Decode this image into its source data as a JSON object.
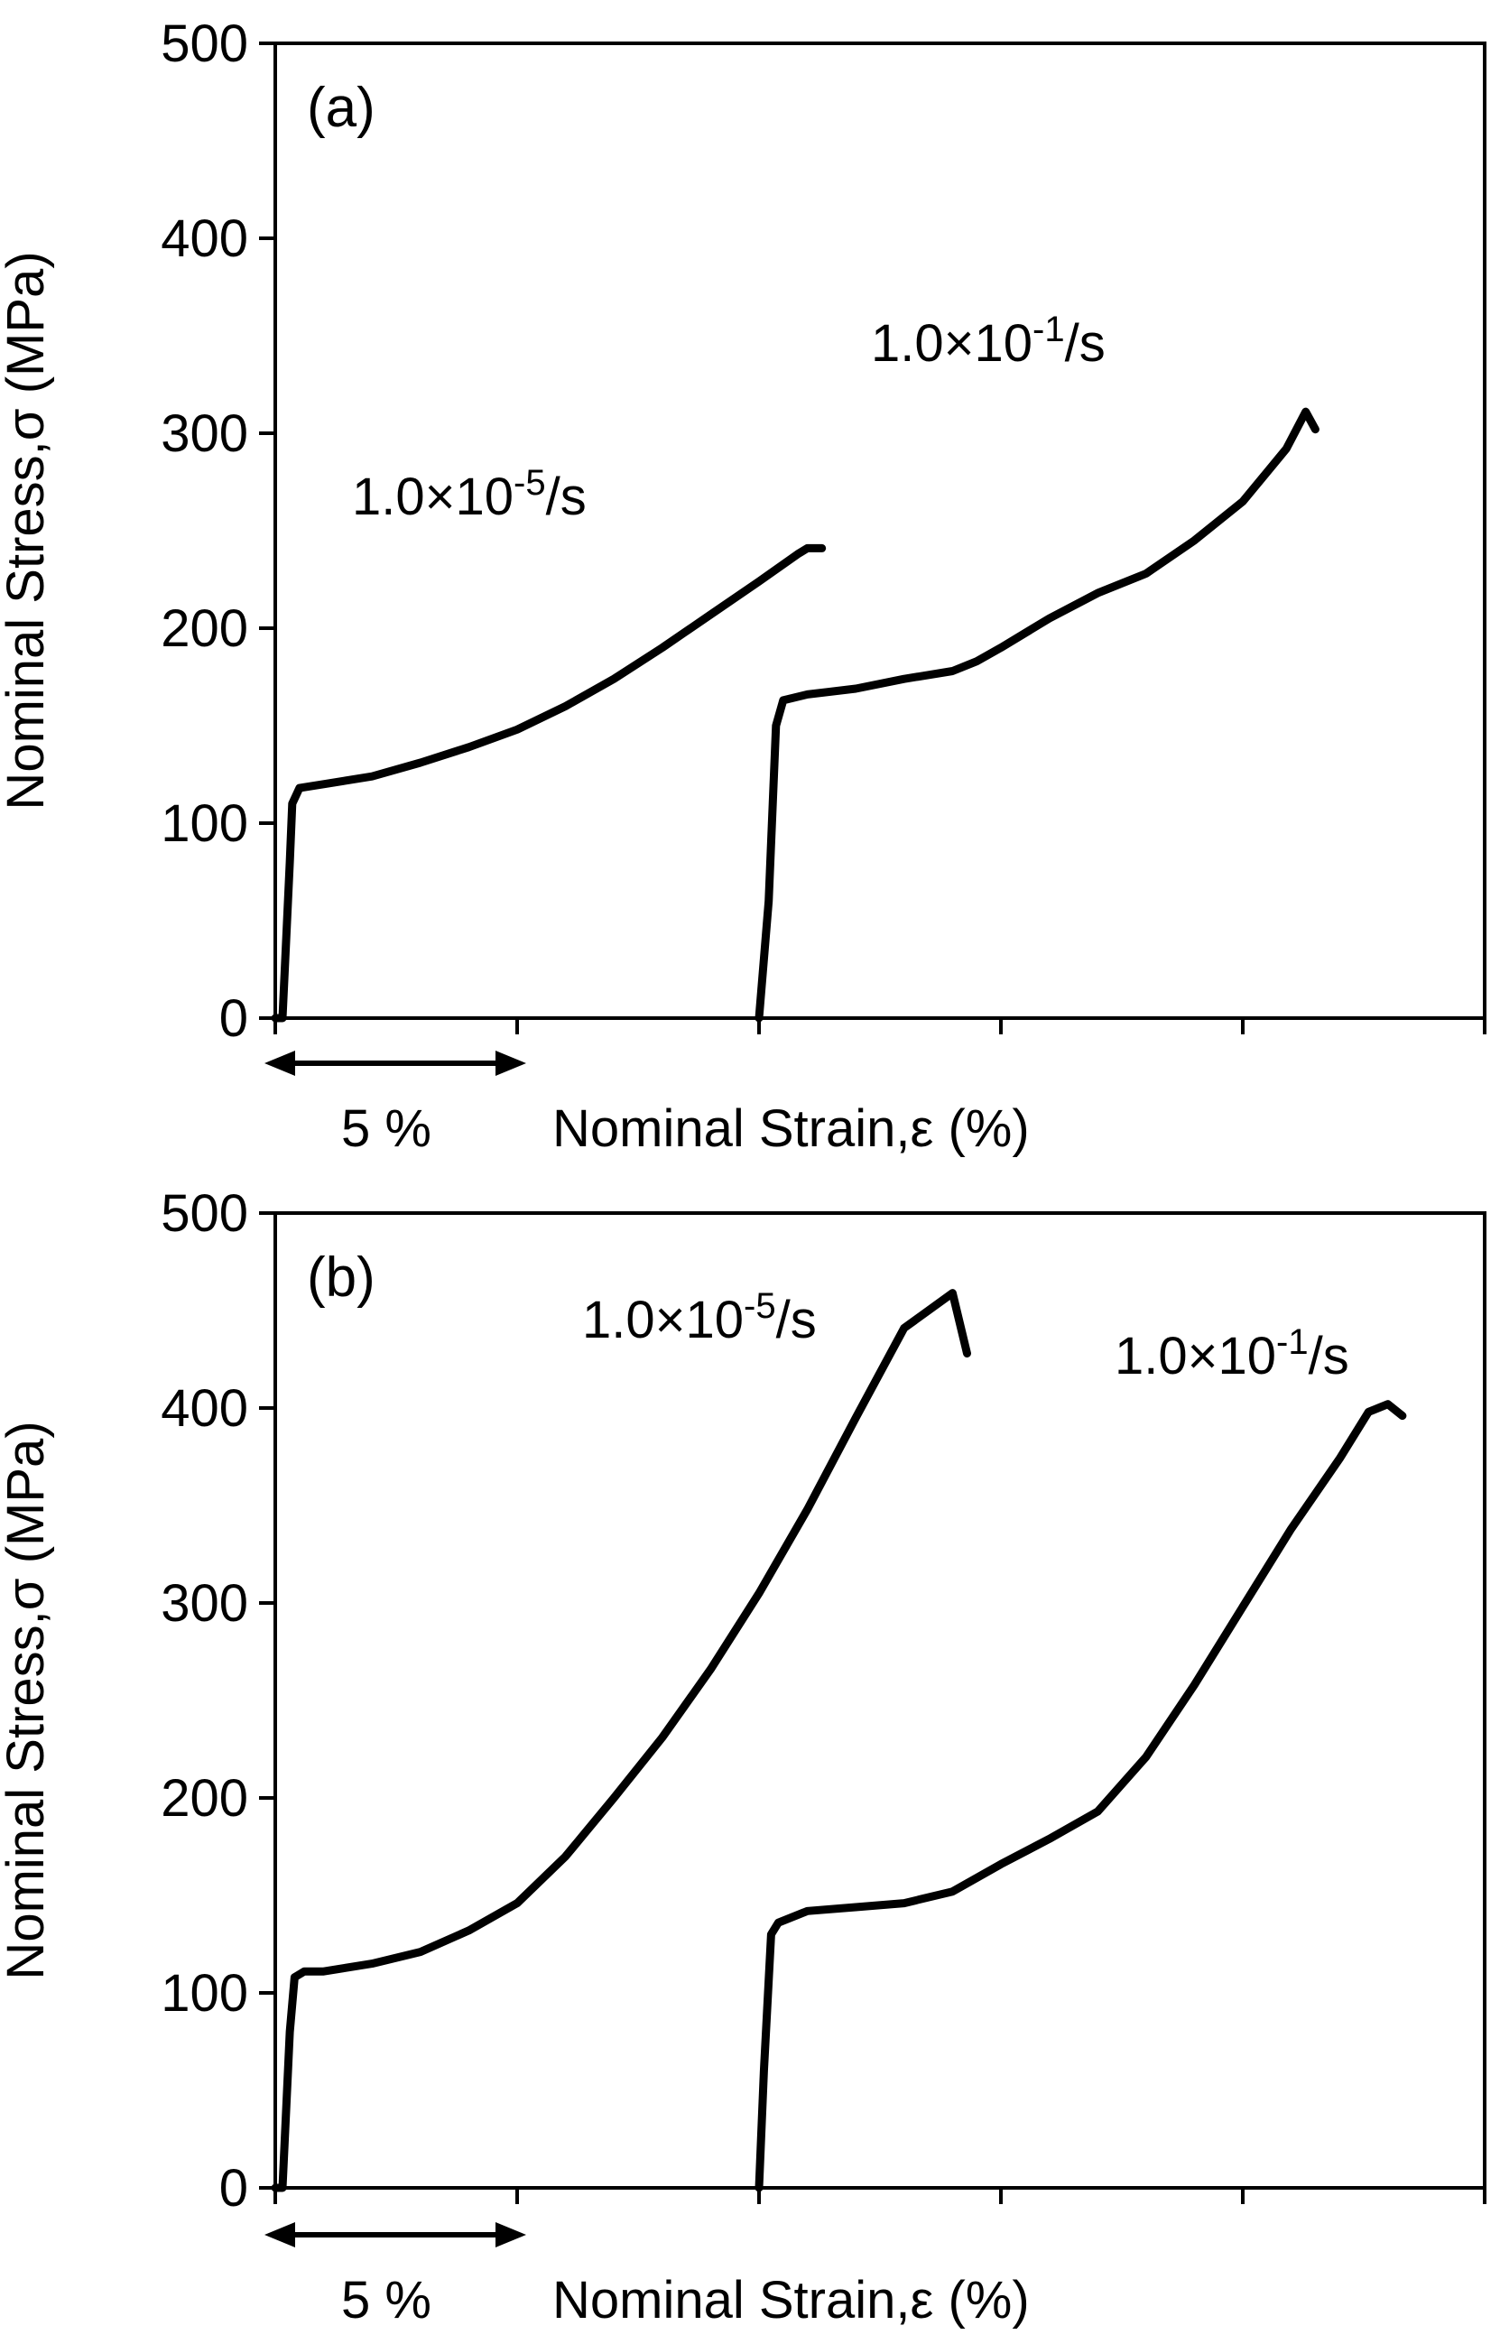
{
  "chart_data": [
    {
      "type": "line",
      "panel_label": "(a)",
      "ylabel": "Nominal Stress,σ (MPa)",
      "xlabel": "Nominal Strain,ε (%)",
      "ylim": [
        0,
        500
      ],
      "xlim": [
        0,
        25
      ],
      "y_ticks": [
        0,
        100,
        200,
        300,
        400,
        500
      ],
      "x_ticks": [
        0,
        5,
        10,
        15,
        20,
        25
      ],
      "grid": false,
      "scale_bar": {
        "label": "5 %",
        "strain_span": 5
      },
      "series": [
        {
          "name": "1.0×10⁻⁵/s",
          "label_prefix": "1.0×10",
          "label_exponent": "-5",
          "label_suffix": "/s",
          "points": [
            [
              0,
              0
            ],
            [
              0.15,
              0
            ],
            [
              0.3,
              80
            ],
            [
              0.35,
              110
            ],
            [
              0.5,
              118
            ],
            [
              1.0,
              120
            ],
            [
              2.0,
              124
            ],
            [
              3.0,
              131
            ],
            [
              4.0,
              139
            ],
            [
              5.0,
              148
            ],
            [
              6.0,
              160
            ],
            [
              7.0,
              174
            ],
            [
              8.0,
              190
            ],
            [
              9.0,
              207
            ],
            [
              10.0,
              224
            ],
            [
              10.8,
              238
            ],
            [
              11.0,
              241
            ],
            [
              11.3,
              241
            ]
          ]
        },
        {
          "name": "1.0×10⁻¹/s",
          "label_prefix": "1.0×10",
          "label_exponent": "-1",
          "label_suffix": "/s",
          "points": [
            [
              10.0,
              0
            ],
            [
              10.2,
              60
            ],
            [
              10.35,
              150
            ],
            [
              10.5,
              163
            ],
            [
              11.0,
              166
            ],
            [
              12.0,
              169
            ],
            [
              13.0,
              174
            ],
            [
              14.0,
              178
            ],
            [
              14.5,
              183
            ],
            [
              15.0,
              190
            ],
            [
              16.0,
              205
            ],
            [
              17.0,
              218
            ],
            [
              18.0,
              228
            ],
            [
              19.0,
              245
            ],
            [
              20.0,
              265
            ],
            [
              20.9,
              292
            ],
            [
              21.3,
              311
            ],
            [
              21.5,
              302
            ]
          ]
        }
      ]
    },
    {
      "type": "line",
      "panel_label": "(b)",
      "ylabel": "Nominal Stress,σ (MPa)",
      "xlabel": "Nominal Strain,ε (%)",
      "ylim": [
        0,
        500
      ],
      "xlim": [
        0,
        25
      ],
      "y_ticks": [
        0,
        100,
        200,
        300,
        400,
        500
      ],
      "x_ticks": [
        0,
        5,
        10,
        15,
        20,
        25
      ],
      "grid": false,
      "scale_bar": {
        "label": "5 %",
        "strain_span": 5
      },
      "series": [
        {
          "name": "1.0×10⁻⁵/s",
          "label_prefix": "1.0×10",
          "label_exponent": "-5",
          "label_suffix": "/s",
          "points": [
            [
              0,
              0
            ],
            [
              0.15,
              0
            ],
            [
              0.3,
              80
            ],
            [
              0.4,
              108
            ],
            [
              0.6,
              111
            ],
            [
              1.0,
              111
            ],
            [
              2.0,
              115
            ],
            [
              3.0,
              121
            ],
            [
              4.0,
              132
            ],
            [
              5.0,
              146
            ],
            [
              6.0,
              170
            ],
            [
              7.0,
              200
            ],
            [
              8.0,
              231
            ],
            [
              9.0,
              266
            ],
            [
              10.0,
              305
            ],
            [
              11.0,
              348
            ],
            [
              12.0,
              395
            ],
            [
              13.0,
              441
            ],
            [
              14.0,
              459
            ],
            [
              14.3,
              428
            ]
          ]
        },
        {
          "name": "1.0×10⁻¹/s",
          "label_prefix": "1.0×10",
          "label_exponent": "-1",
          "label_suffix": "/s",
          "points": [
            [
              10.0,
              0
            ],
            [
              10.1,
              60
            ],
            [
              10.25,
              130
            ],
            [
              10.4,
              136
            ],
            [
              11.0,
              142
            ],
            [
              12.0,
              144
            ],
            [
              13.0,
              146
            ],
            [
              14.0,
              152
            ],
            [
              15.0,
              166
            ],
            [
              16.0,
              179
            ],
            [
              17.0,
              193
            ],
            [
              18.0,
              221
            ],
            [
              19.0,
              258
            ],
            [
              20.0,
              298
            ],
            [
              21.0,
              338
            ],
            [
              22.0,
              374
            ],
            [
              22.6,
              398
            ],
            [
              23.0,
              402
            ],
            [
              23.3,
              396
            ]
          ]
        }
      ]
    }
  ]
}
